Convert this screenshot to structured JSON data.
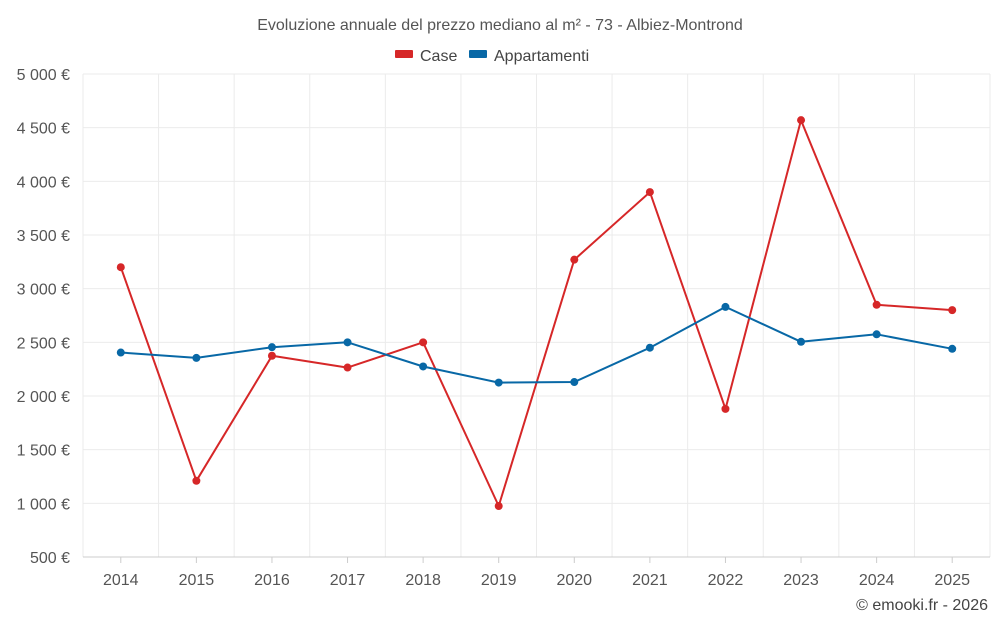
{
  "chart_data": {
    "type": "line",
    "title": "Evoluzione annuale del prezzo mediano al m² - 73 - Albiez-Montrond",
    "categories": [
      "2014",
      "2015",
      "2016",
      "2017",
      "2018",
      "2019",
      "2020",
      "2021",
      "2022",
      "2023",
      "2024",
      "2025"
    ],
    "ylim": [
      500,
      5000
    ],
    "yticks": [
      500,
      1000,
      1500,
      2000,
      2500,
      3000,
      3500,
      4000,
      4500,
      5000
    ],
    "ytick_labels": [
      "500 €",
      "1 000 €",
      "1 500 €",
      "2 000 €",
      "2 500 €",
      "3 000 €",
      "3 500 €",
      "4 000 €",
      "4 500 €",
      "5 000 €"
    ],
    "grid": true,
    "legend_position": "top-center",
    "series": [
      {
        "name": "Case",
        "color": "#d62728",
        "values": [
          3200,
          1210,
          2375,
          2265,
          2500,
          975,
          3270,
          3900,
          1880,
          4570,
          2850,
          2800
        ]
      },
      {
        "name": "Appartamenti",
        "color": "#0868a6",
        "values": [
          2405,
          2355,
          2455,
          2500,
          2275,
          2125,
          2130,
          2450,
          2830,
          2505,
          2575,
          2440
        ]
      }
    ],
    "credit": "© emooki.fr - 2026"
  }
}
